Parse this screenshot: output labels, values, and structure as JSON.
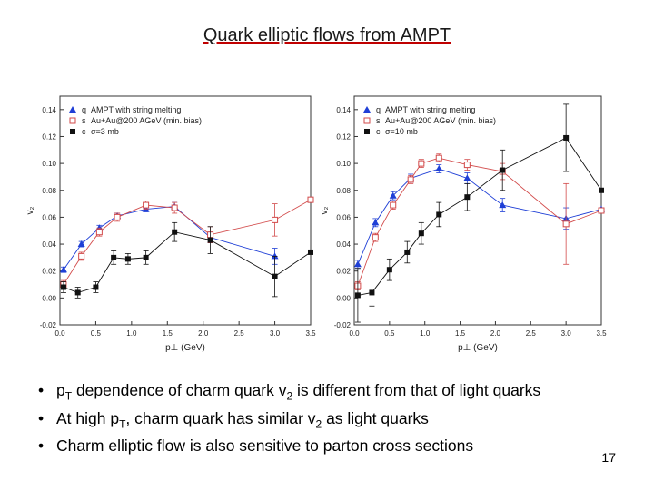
{
  "slide": {
    "title": "Quark elliptic flows from AMPT",
    "page_number": "17"
  },
  "bullets": [
    {
      "parts": [
        "p",
        "T",
        " dependence of charm quark v",
        "2",
        " is different from that of light quarks"
      ]
    },
    {
      "parts": [
        "At high p",
        "T",
        ", charm quark has similar v",
        "2",
        " as light quarks"
      ]
    },
    {
      "parts": [
        "Charm elliptic flow is also sensitive to parton cross sections"
      ]
    }
  ],
  "chart_data": [
    {
      "type": "scatter",
      "xlabel": "p⊥ (GeV)",
      "ylabel": "v₂",
      "xlim": [
        0.0,
        3.5
      ],
      "ylim": [
        -0.02,
        0.15
      ],
      "xticks": [
        "0.0",
        "0.5",
        "1.0",
        "1.5",
        "2.0",
        "2.5",
        "3.0",
        "3.5"
      ],
      "yticks": [
        "-0.02",
        "0.00",
        "0.02",
        "0.04",
        "0.06",
        "0.08",
        "0.10",
        "0.12",
        "0.14"
      ],
      "annotation": [
        "AMPT with string melting",
        "Au+Au@200 AGeV (min. bias)",
        "σ=3 mb"
      ],
      "series": [
        {
          "name": "q",
          "color": "#1f3fd6",
          "marker": "triangle",
          "x": [
            0.05,
            0.3,
            0.55,
            0.8,
            1.2,
            1.6,
            2.1,
            3.0
          ],
          "y": [
            0.021,
            0.04,
            0.052,
            0.061,
            0.066,
            0.068,
            0.045,
            0.031
          ],
          "err": [
            0.002,
            0.002,
            0.002,
            0.002,
            0.002,
            0.003,
            0.004,
            0.006
          ]
        },
        {
          "name": "s",
          "color": "#d24a4a",
          "marker": "open-square",
          "x": [
            0.05,
            0.3,
            0.55,
            0.8,
            1.2,
            1.6,
            2.1,
            3.0,
            3.5
          ],
          "y": [
            0.01,
            0.031,
            0.049,
            0.06,
            0.069,
            0.067,
            0.047,
            0.058,
            0.073
          ],
          "err": [
            0.003,
            0.003,
            0.003,
            0.003,
            0.003,
            0.004,
            0.006,
            0.012,
            0.0
          ]
        },
        {
          "name": "c",
          "color": "#111111",
          "marker": "square",
          "x": [
            0.05,
            0.25,
            0.5,
            0.75,
            0.95,
            1.2,
            1.6,
            2.1,
            3.0,
            3.5
          ],
          "y": [
            0.008,
            0.004,
            0.008,
            0.03,
            0.029,
            0.03,
            0.049,
            0.043,
            0.016,
            0.034
          ],
          "err": [
            0.004,
            0.004,
            0.004,
            0.005,
            0.004,
            0.005,
            0.007,
            0.01,
            0.015,
            0.0
          ]
        }
      ]
    },
    {
      "type": "scatter",
      "xlabel": "p⊥ (GeV)",
      "ylabel": "v₂",
      "xlim": [
        0.0,
        3.5
      ],
      "ylim": [
        -0.02,
        0.15
      ],
      "xticks": [
        "0.0",
        "0.5",
        "1.0",
        "1.5",
        "2.0",
        "2.5",
        "3.0",
        "3.5"
      ],
      "yticks": [
        "-0.02",
        "0.00",
        "0.02",
        "0.04",
        "0.06",
        "0.08",
        "0.10",
        "0.12",
        "0.14"
      ],
      "annotation": [
        "AMPT with string melting",
        "Au+Au@200 AGeV (min. bias)",
        "σ=10 mb"
      ],
      "series": [
        {
          "name": "q",
          "color": "#1f3fd6",
          "marker": "triangle",
          "x": [
            0.05,
            0.3,
            0.55,
            0.8,
            1.2,
            1.6,
            2.1,
            3.0,
            3.5
          ],
          "y": [
            0.025,
            0.056,
            0.076,
            0.089,
            0.096,
            0.089,
            0.069,
            0.059,
            0.066
          ],
          "err": [
            0.003,
            0.003,
            0.003,
            0.003,
            0.003,
            0.004,
            0.005,
            0.008,
            0.0
          ]
        },
        {
          "name": "s",
          "color": "#d24a4a",
          "marker": "open-square",
          "x": [
            0.05,
            0.3,
            0.55,
            0.8,
            0.95,
            1.2,
            1.6,
            2.1,
            3.0,
            3.5
          ],
          "y": [
            0.009,
            0.045,
            0.069,
            0.088,
            0.1,
            0.104,
            0.099,
            0.094,
            0.055,
            0.065
          ],
          "err": [
            0.003,
            0.003,
            0.003,
            0.003,
            0.003,
            0.003,
            0.004,
            0.006,
            0.03,
            0.0
          ]
        },
        {
          "name": "c",
          "color": "#111111",
          "marker": "square",
          "x": [
            0.05,
            0.25,
            0.5,
            0.75,
            0.95,
            1.2,
            1.6,
            2.1,
            3.0,
            3.5
          ],
          "y": [
            0.002,
            0.004,
            0.021,
            0.034,
            0.048,
            0.062,
            0.075,
            0.095,
            0.119,
            0.08
          ],
          "err": [
            0.02,
            0.01,
            0.008,
            0.008,
            0.008,
            0.009,
            0.01,
            0.015,
            0.025,
            0.0
          ]
        }
      ]
    }
  ]
}
